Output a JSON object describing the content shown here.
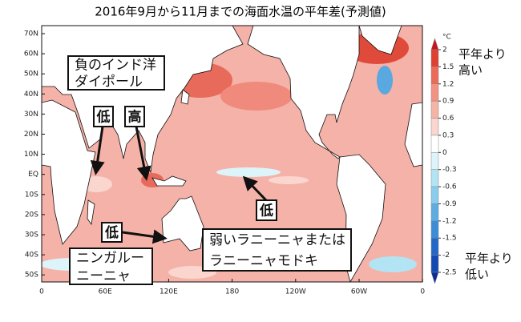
{
  "title": "2016年9月から11月までの海面水温の平年差(予測値)",
  "map": {
    "lat_labels": [
      "70N",
      "60N",
      "50N",
      "40N",
      "30N",
      "20N",
      "10N",
      "EQ",
      "10S",
      "20S",
      "30S",
      "40S",
      "50S"
    ],
    "lon_labels": [
      "0",
      "60E",
      "120E",
      "180",
      "120W",
      "60W",
      "0"
    ]
  },
  "colorbar": {
    "unit": "°C",
    "ticks": [
      2,
      1.5,
      1.2,
      0.9,
      0.6,
      0.3,
      0,
      -0.3,
      -0.6,
      -0.9,
      -1.2,
      -1.5,
      -2,
      -2.5
    ],
    "colors": [
      "#c8141e",
      "#e0402f",
      "#ec6a58",
      "#f29282",
      "#f6b4a8",
      "#fad6ce",
      "#ffffff",
      "#ddf4fa",
      "#b2e4f4",
      "#88cdee",
      "#5eacE2",
      "#3c8cd8",
      "#2266c8",
      "#1448b2",
      "#0a2e96"
    ],
    "high_label": [
      "平年より",
      "高い"
    ],
    "low_label": [
      "平年より",
      "低い"
    ]
  },
  "annotations": [
    {
      "text": [
        "負のインド洋",
        "ダイポール"
      ]
    },
    {
      "text": [
        "低"
      ],
      "color": "#1a5fd8"
    },
    {
      "text": [
        "高"
      ],
      "color": "#e01818"
    },
    {
      "text": [
        "低"
      ],
      "color": "#1a5fd8"
    },
    {
      "text": [
        "低"
      ],
      "color": "#1a5fd8"
    },
    {
      "text": [
        "弱いラニーニャまたは",
        "ラニーニャモドキ"
      ]
    },
    {
      "text": [
        "ニンガルー",
        "ニーニャ"
      ]
    }
  ]
}
